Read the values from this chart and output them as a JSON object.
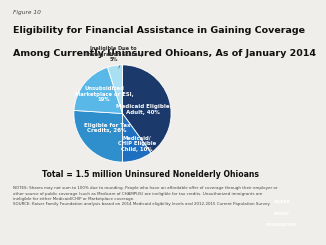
{
  "figure_label": "Figure 10",
  "title_line1": "Eligibility for Financial Assistance in Gaining Coverage",
  "title_line2": "Among Currently Uninsured Ohioans, As of January 2014",
  "slices": [
    {
      "label": "Medicaid Eligible\nAdult, 40%",
      "value": 40,
      "color": "#1b3a6b"
    },
    {
      "label": "Medicaid/\nCHIP Eligible\nChild, 10%",
      "value": 10,
      "color": "#1e6fc0"
    },
    {
      "label": "Eligible for Tax\nCredits, 26%",
      "value": 26,
      "color": "#2e8fcc"
    },
    {
      "label": "Unsubsidized\nMarketplace or ESI,\n19%",
      "value": 19,
      "color": "#5ab8e8"
    },
    {
      "label": "Ineligible Due to\nImmigration Status,\n5%",
      "value": 5,
      "color": "#a8dff2"
    }
  ],
  "total_label": "Total = 1.5 million Uninsured Nonelderly Ohioans",
  "notes": "NOTES: Shares may not sum to 100% due to rounding. People who have an affordable offer of coverage through their employer or\nother source of public coverage (such as Medicare of CHAMPUS) are ineligible for tax credits. Unauthorized immigrants are\nineligible for either Medicaid/CHIP or Marketplace coverage.\nSOURCE: Kaiser Family Foundation analysis based on 2014 Medicaid eligibility levels and 2012-2015 Current Population Survey.",
  "background_color": "#f0eeea",
  "logo_color": "#1b3a6b",
  "logo_lines": [
    "KAISER",
    "FAMILY",
    "FOUNDATION"
  ]
}
